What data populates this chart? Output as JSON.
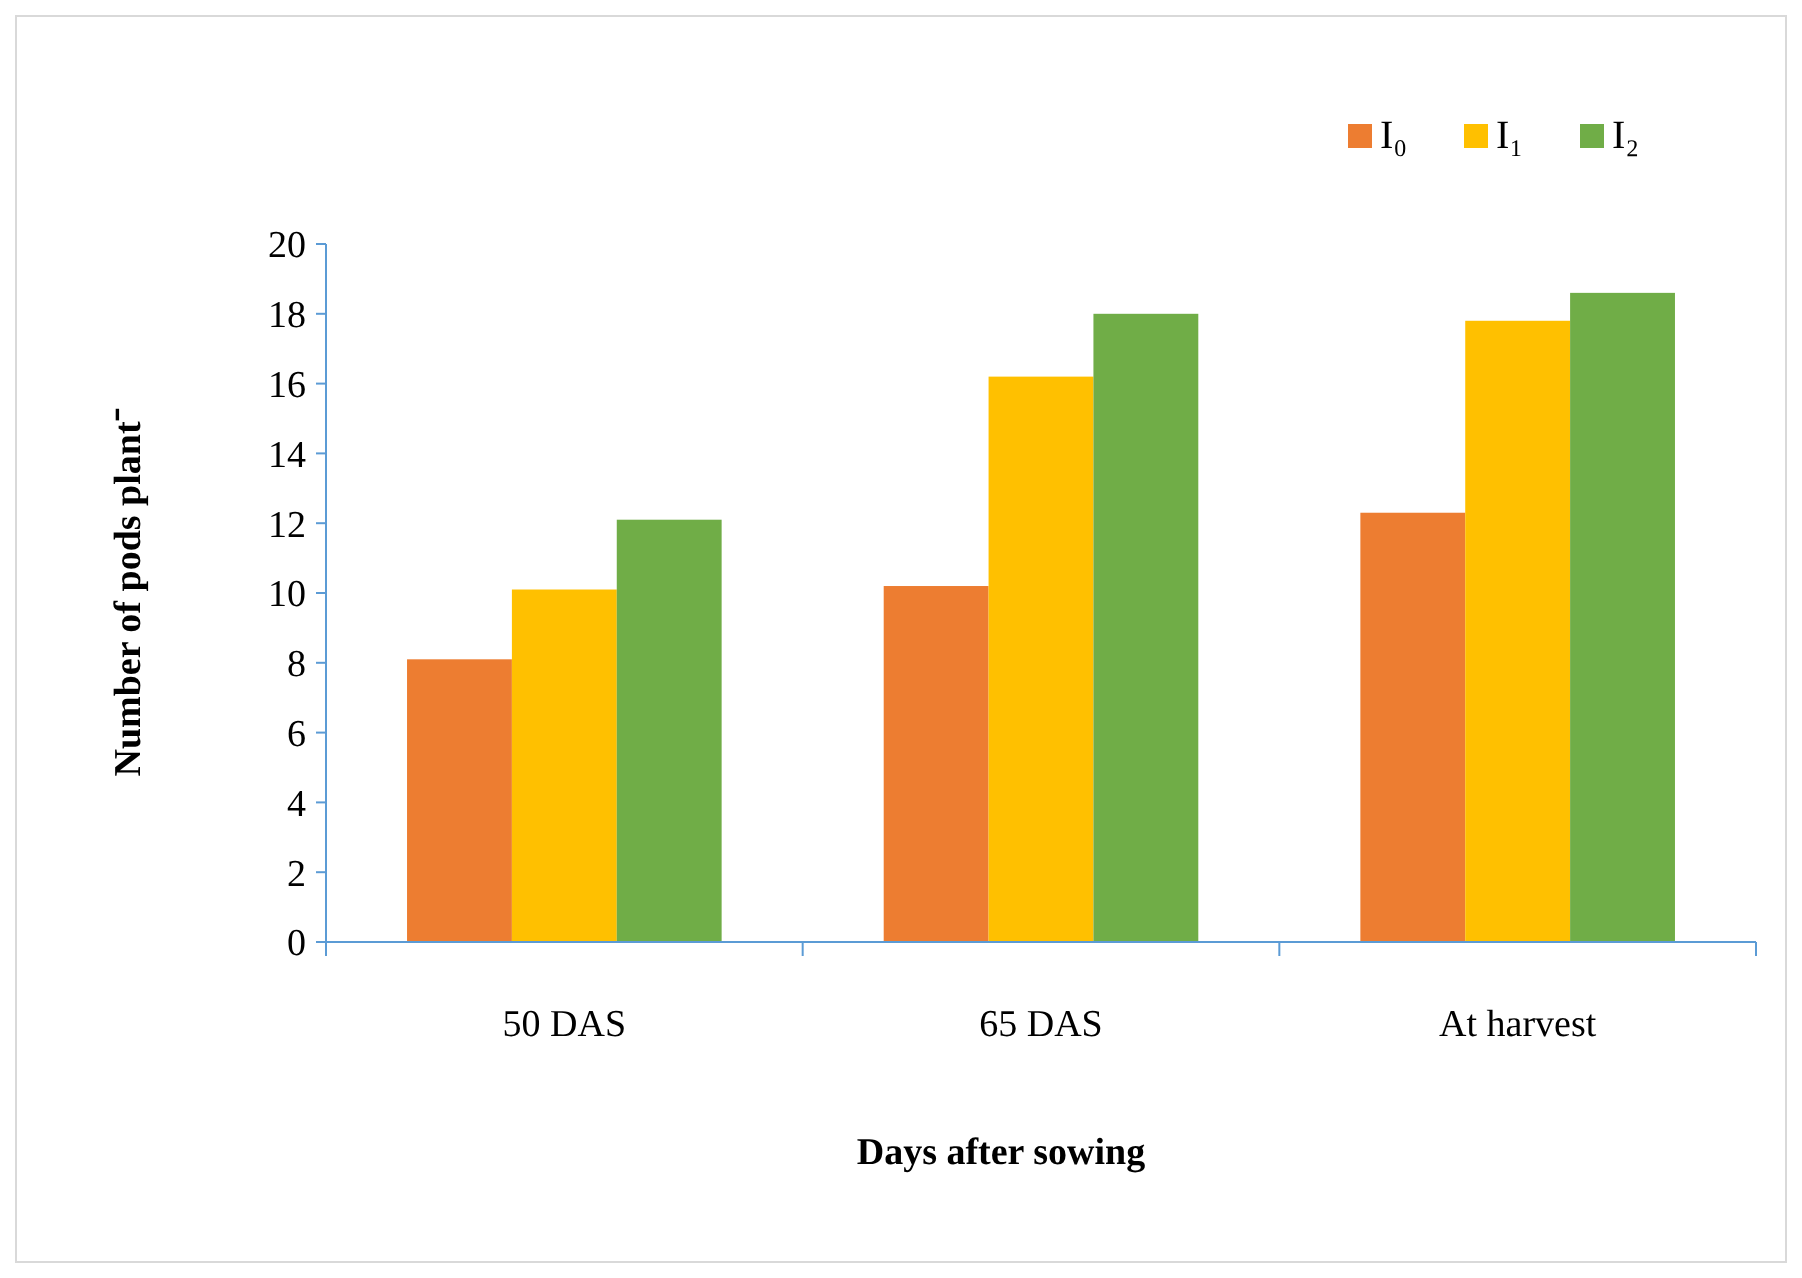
{
  "chart_data": {
    "type": "bar",
    "xlabel": "Days after sowing",
    "ylabel": "Number of pods plant⁻",
    "categories": [
      "50 DAS",
      "65 DAS",
      "At harvest"
    ],
    "series": [
      {
        "name": "I₀",
        "color": "#ed7d31",
        "values": [
          8.1,
          10.2,
          12.3
        ]
      },
      {
        "name": "I₁",
        "color": "#ffc000",
        "values": [
          10.1,
          16.2,
          17.8
        ]
      },
      {
        "name": "I₂",
        "color": "#70ad47",
        "values": [
          12.1,
          18.0,
          18.6
        ]
      }
    ],
    "ylim": [
      0,
      20
    ],
    "yticks": [
      0,
      2,
      4,
      6,
      8,
      10,
      12,
      14,
      16,
      18,
      20
    ],
    "grid": false,
    "legend": "top right"
  }
}
